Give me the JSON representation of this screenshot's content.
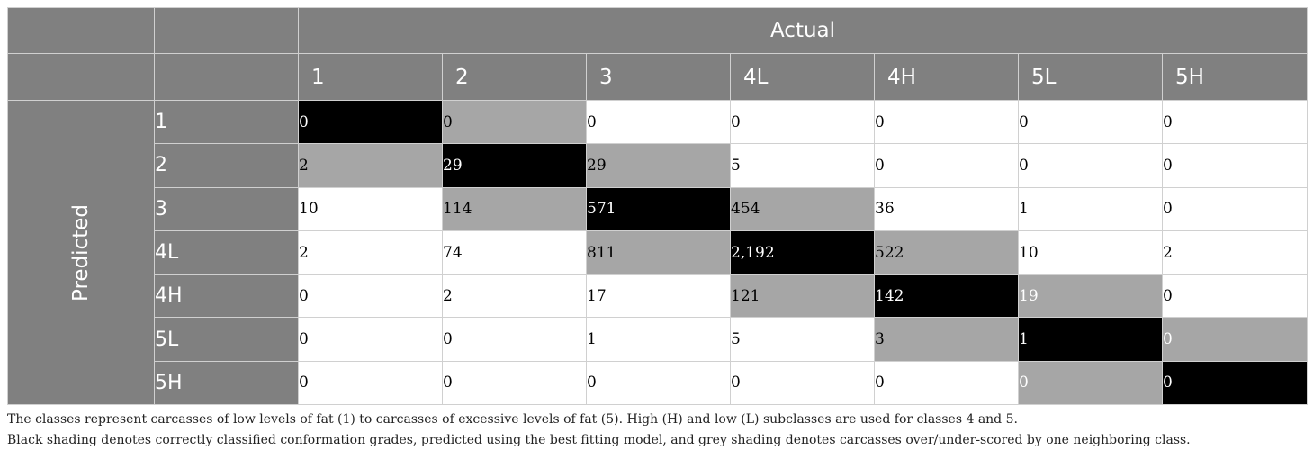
{
  "header": {
    "actual_label": "Actual",
    "predicted_label": "Predicted",
    "columns": [
      "1",
      "2",
      "3",
      "4L",
      "4H",
      "5L",
      "5H"
    ]
  },
  "rows": [
    {
      "label": "1",
      "values": [
        "0",
        "0",
        "0",
        "0",
        "0",
        "0",
        "0"
      ]
    },
    {
      "label": "2",
      "values": [
        "2",
        "29",
        "29",
        "5",
        "0",
        "0",
        "0"
      ]
    },
    {
      "label": "3",
      "values": [
        "10",
        "114",
        "571",
        "454",
        "36",
        "1",
        "0"
      ]
    },
    {
      "label": "4L",
      "values": [
        "2",
        "74",
        "811",
        "2,192",
        "522",
        "10",
        "2"
      ]
    },
    {
      "label": "4H",
      "values": [
        "0",
        "2",
        "17",
        "121",
        "142",
        "19",
        "0"
      ]
    },
    {
      "label": "5L",
      "values": [
        "0",
        "0",
        "1",
        "5",
        "3",
        "1",
        "0"
      ]
    },
    {
      "label": "5H",
      "values": [
        "0",
        "0",
        "0",
        "0",
        "0",
        "0",
        "0"
      ]
    }
  ],
  "footnotes": [
    "The classes represent carcasses of low levels of fat (1) to carcasses of excessive levels of fat (5). High (H) and low (L) subclasses are used for classes 4 and 5.",
    "Black shading denotes correctly classified conformation grades, predicted using the best fitting model, and grey shading denotes carcasses over/under-scored by one neighboring class."
  ],
  "colors": {
    "header_bg": "#808080",
    "correct_shade": "#000000",
    "neighbor_shade": "#a6a6a6"
  }
}
